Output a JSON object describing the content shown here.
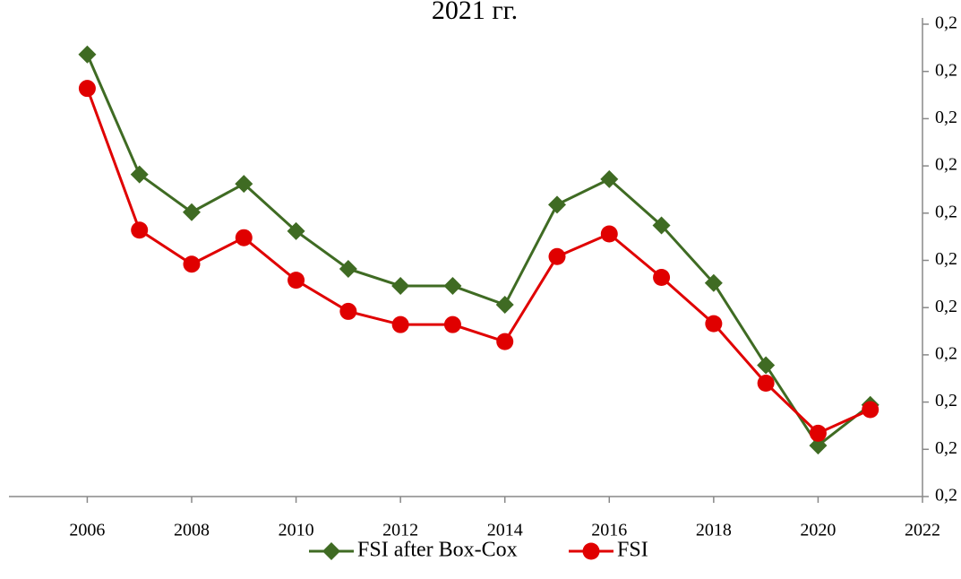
{
  "chart_data": {
    "type": "line",
    "title": "2021 гг.",
    "x": [
      2006,
      2007,
      2008,
      2009,
      2010,
      2011,
      2012,
      2013,
      2014,
      2015,
      2016,
      2017,
      2018,
      2019,
      2020,
      2021
    ],
    "series": [
      {
        "name": "FSI after Box-Cox",
        "color": "#3f6b23",
        "marker": "diamond",
        "values": [
          0.2468,
          0.2341,
          0.2301,
          0.2331,
          0.2281,
          0.2241,
          0.2223,
          0.2223,
          0.2203,
          0.2309,
          0.2336,
          0.2287,
          0.2226,
          0.2139,
          0.2054,
          0.2097
        ]
      },
      {
        "name": "FSI",
        "color": "#e00000",
        "marker": "circle",
        "values": [
          0.2432,
          0.2282,
          0.2246,
          0.2274,
          0.2229,
          0.2196,
          0.2182,
          0.2182,
          0.2164,
          0.2254,
          0.2278,
          0.2232,
          0.2183,
          0.212,
          0.2067,
          0.2092
        ]
      }
    ],
    "xlim": [
      2004.5,
      2022
    ],
    "xticks": [
      2006,
      2008,
      2010,
      2012,
      2014,
      2016,
      2018,
      2020,
      2022
    ],
    "ylim": [
      0.2,
      0.25
    ],
    "yticks": [
      {
        "value": 0.2,
        "label": "0,2"
      },
      {
        "value": 0.205,
        "label": "0,2"
      },
      {
        "value": 0.21,
        "label": "0,2"
      },
      {
        "value": 0.215,
        "label": "0,2"
      },
      {
        "value": 0.22,
        "label": "0,2"
      },
      {
        "value": 0.225,
        "label": "0,2"
      },
      {
        "value": 0.23,
        "label": "0,2"
      },
      {
        "value": 0.235,
        "label": "0,2"
      },
      {
        "value": 0.24,
        "label": "0,2"
      },
      {
        "value": 0.245,
        "label": "0,2"
      },
      {
        "value": 0.25,
        "label": "0,2"
      }
    ],
    "y_axis_side": "right",
    "legend": "bottom"
  }
}
